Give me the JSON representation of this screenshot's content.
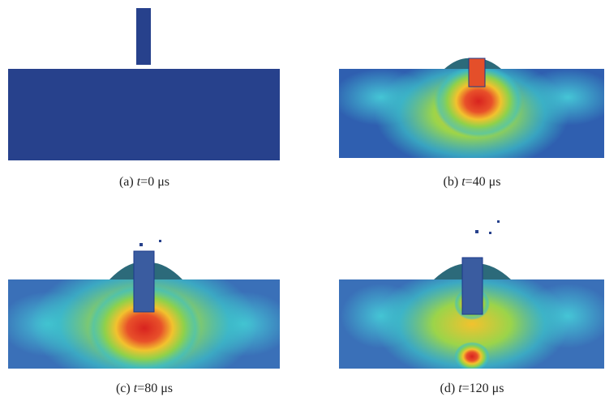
{
  "panels": [
    {
      "caption": {
        "label": "(a)",
        "variable": "t",
        "value": "=0 μs"
      }
    },
    {
      "caption": {
        "label": "(b)",
        "variable": "t",
        "value": "=40 μs"
      }
    },
    {
      "caption": {
        "label": "(c)",
        "variable": "t",
        "value": "=80 μs"
      }
    },
    {
      "caption": {
        "label": "(d)",
        "variable": "t",
        "value": "=120 μs"
      }
    }
  ]
}
